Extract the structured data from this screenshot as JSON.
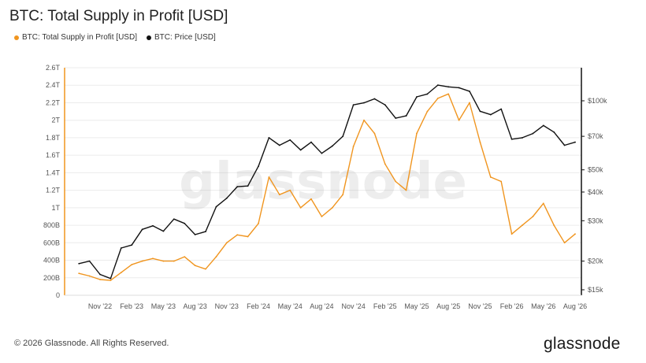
{
  "header": {
    "title": "BTC: Total Supply in Profit [USD]"
  },
  "footer": {
    "copyright": "© 2026 Glassnode. All Rights Reserved.",
    "logo_text": "glassnode"
  },
  "watermark": {
    "text": "glassnode"
  },
  "colors": {
    "supply": "#f0951f",
    "price": "#111111",
    "grid": "#ececec",
    "axis_left": "#f0951f",
    "axis_right": "#111111"
  },
  "chart_data": {
    "type": "line",
    "title": "BTC: Total Supply in Profit [USD]",
    "x": [
      "Sep '22",
      "Oct '22",
      "Nov '22",
      "Dec '22",
      "Jan '23",
      "Feb '23",
      "Mar '23",
      "Apr '23",
      "May '23",
      "Jun '23",
      "Jul '23",
      "Aug '23",
      "Sep '23",
      "Oct '23",
      "Nov '23",
      "Dec '23",
      "Jan '24",
      "Feb '24",
      "Mar '24",
      "Apr '24",
      "May '24",
      "Jun '24",
      "Jul '24",
      "Aug '24",
      "Sep '24",
      "Oct '24",
      "Nov '24",
      "Dec '24",
      "Jan '25",
      "Feb '25",
      "Mar '25",
      "Apr '25",
      "May '25",
      "Jun '25",
      "Jul '25",
      "Aug '25",
      "Sep '25",
      "Oct '25",
      "Nov '25",
      "Dec '25",
      "Jan '26",
      "Feb '26",
      "Mar '26",
      "Apr '26",
      "May '26",
      "Jun '26",
      "Jul '26",
      "Aug '26"
    ],
    "x_ticks": [
      "Nov '22",
      "Feb '23",
      "May '23",
      "Aug '23",
      "Nov '23",
      "Feb '24",
      "May '24",
      "Aug '24",
      "Nov '24",
      "Feb '25",
      "May '25",
      "Aug '25",
      "Nov '25",
      "Feb '26",
      "May '26",
      "Aug '26"
    ],
    "series": [
      {
        "name": "BTC: Total Supply in Profit [USD]",
        "axis": "left",
        "unit": "USD",
        "values": [
          250000000000.0,
          220000000000.0,
          180000000000.0,
          170000000000.0,
          260000000000.0,
          350000000000.0,
          390000000000.0,
          420000000000.0,
          390000000000.0,
          390000000000.0,
          440000000000.0,
          340000000000.0,
          300000000000.0,
          440000000000.0,
          600000000000.0,
          690000000000.0,
          670000000000.0,
          820000000000.0,
          1350000000000.0,
          1150000000000.0,
          1200000000000.0,
          1000000000000.0,
          1100000000000.0,
          900000000000.0,
          1000000000000.0,
          1150000000000.0,
          1700000000000.0,
          2000000000000.0,
          1850000000000.0,
          1500000000000.0,
          1300000000000.0,
          1200000000000.0,
          1850000000000.0,
          2100000000000.0,
          2250000000000.0,
          2300000000000.0,
          2000000000000.0,
          2200000000000.0,
          1750000000000.0,
          1350000000000.0,
          1300000000000.0,
          700000000000.0,
          800000000000.0,
          900000000000.0,
          1050000000000.0,
          800000000000.0,
          600000000000.0,
          700000000000.0
        ]
      },
      {
        "name": "BTC: Price [USD]",
        "axis": "right",
        "unit": "USD",
        "values": [
          19500,
          20000,
          17500,
          16800,
          22800,
          23500,
          27500,
          28500,
          27000,
          30500,
          29200,
          26100,
          26900,
          34500,
          37600,
          42200,
          42500,
          51800,
          69000,
          64000,
          67500,
          61000,
          66000,
          59000,
          63500,
          70000,
          96000,
          98000,
          102000,
          96000,
          84000,
          86000,
          104000,
          107000,
          117000,
          115000,
          114000,
          110000,
          90000,
          87000,
          92000,
          68000,
          69000,
          72000,
          78000,
          73000,
          64000,
          66000
        ]
      }
    ],
    "y_left": {
      "ticks": [
        "0",
        "200B",
        "400B",
        "600B",
        "800B",
        "1T",
        "1.2T",
        "1.4T",
        "1.6T",
        "1.8T",
        "2T",
        "2.2T",
        "2.4T",
        "2.6T"
      ],
      "min": 0,
      "max": 2600000000000.0,
      "scale": "linear"
    },
    "y_right": {
      "ticks": [
        "$15k",
        "$20k",
        "$30k",
        "$40k",
        "$50k",
        "$70k",
        "$100k"
      ],
      "tick_values": [
        15000,
        20000,
        30000,
        40000,
        50000,
        70000,
        100000
      ],
      "scale": "log"
    },
    "legend": {
      "placement": "top-left",
      "items": [
        "BTC: Total Supply in Profit [USD]",
        "BTC: Price [USD]"
      ]
    },
    "grid": true
  }
}
